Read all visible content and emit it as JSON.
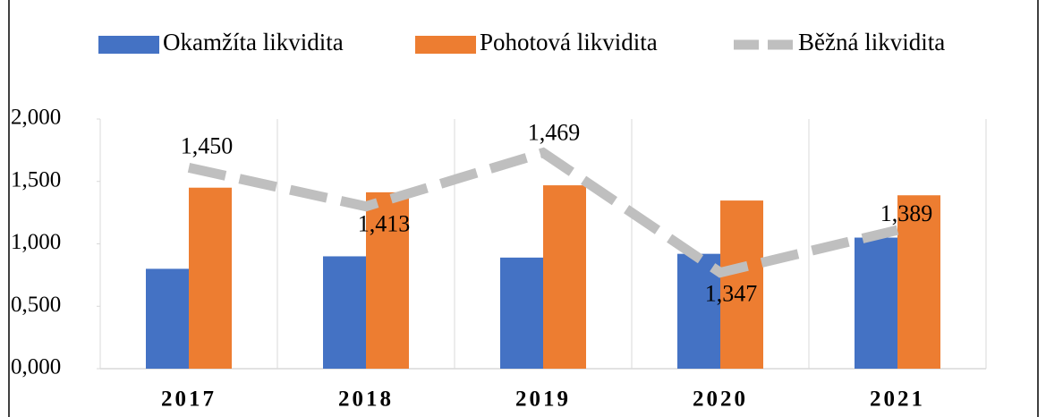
{
  "chart_data": {
    "type": "bar",
    "categories": [
      "2017",
      "2018",
      "2019",
      "2020",
      "2021"
    ],
    "series": [
      {
        "name": "Okamžíta likvidita",
        "type": "bar",
        "color": "#4472c4",
        "values": [
          0.8,
          0.9,
          0.89,
          0.92,
          1.05
        ]
      },
      {
        "name": "Pohotová likvidita",
        "type": "bar",
        "color": "#ed7d31",
        "values": [
          1.45,
          1.413,
          1.469,
          1.347,
          1.389
        ],
        "value_labels": [
          "1,450",
          "1,413",
          "1,469",
          "1,347",
          "1,389"
        ]
      },
      {
        "name": "Běžná likvidita",
        "type": "line",
        "color": "#bfbfbf",
        "dashed": true,
        "values": [
          1.61,
          1.3,
          1.73,
          0.77,
          1.11
        ]
      }
    ],
    "ylim": [
      0,
      2
    ],
    "yticks": [
      {
        "value": 0,
        "label": "0,000"
      },
      {
        "value": 0.5,
        "label": "0,500"
      },
      {
        "value": 1,
        "label": "1,000"
      },
      {
        "value": 1.5,
        "label": "1,500"
      },
      {
        "value": 2,
        "label": "2,000"
      }
    ],
    "legend": "top"
  }
}
